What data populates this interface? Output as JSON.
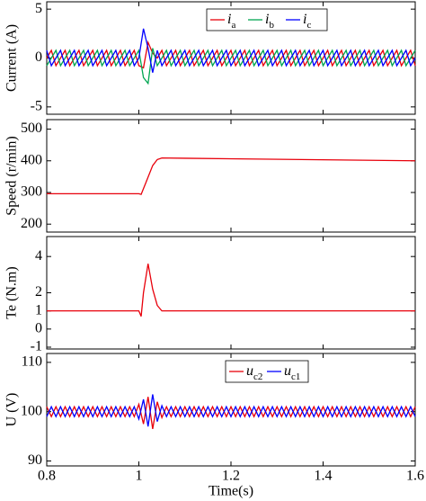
{
  "chart_data": [
    {
      "type": "line",
      "ylabel": "Current (A)",
      "legend": "upper center",
      "xlim": [
        0.8,
        1.6
      ],
      "ylim": [
        -5.75,
        5.75
      ],
      "yticks": [
        -5,
        0,
        5
      ],
      "x": [
        0.8,
        0.81,
        0.82,
        0.83,
        0.84,
        0.85,
        0.86,
        0.87,
        0.88,
        0.89,
        0.9,
        0.91,
        0.92,
        0.93,
        0.94,
        0.95,
        0.96,
        0.97,
        0.98,
        0.99,
        1.0,
        1.01,
        1.02,
        1.03,
        1.04,
        1.05,
        1.06,
        1.07,
        1.08,
        1.09,
        1.1,
        1.11,
        1.12,
        1.13,
        1.14,
        1.15,
        1.16,
        1.17,
        1.18,
        1.19,
        1.2,
        1.21,
        1.22,
        1.23,
        1.24,
        1.25,
        1.26,
        1.27,
        1.28,
        1.29,
        1.3,
        1.31,
        1.32,
        1.33,
        1.34,
        1.35,
        1.36,
        1.37,
        1.38,
        1.39,
        1.4,
        1.41,
        1.42,
        1.43,
        1.44,
        1.45,
        1.46,
        1.47,
        1.48,
        1.49,
        1.5,
        1.51,
        1.52,
        1.53,
        1.54,
        1.55,
        1.56,
        1.57,
        1.58,
        1.59,
        1.6
      ],
      "series": [
        {
          "name": "ia",
          "color": "#e8000b",
          "values": [
            0,
            0.78,
            -0.78,
            0,
            0.78,
            -0.78,
            0,
            0.78,
            -0.78,
            0,
            0.78,
            -0.78,
            0,
            0.78,
            -0.78,
            0,
            0.78,
            -0.78,
            0,
            0.78,
            -0.78,
            -1.0,
            1.6,
            0.5,
            0,
            0.78,
            -0.78,
            0,
            0.78,
            -0.78,
            0,
            0.78,
            -0.78,
            0,
            0.78,
            -0.78,
            0,
            0.78,
            -0.78,
            0,
            0.78,
            -0.78,
            0,
            0.78,
            -0.78,
            0,
            0.78,
            -0.78,
            0,
            0.78,
            -0.78,
            0,
            0.78,
            -0.78,
            0,
            0.78,
            -0.78,
            0,
            0.78,
            -0.78,
            0,
            0.78,
            -0.78,
            0,
            0.78,
            -0.78,
            0,
            0.78,
            -0.78,
            0,
            0.78,
            -0.78,
            0,
            0.78,
            -0.78,
            0,
            0.78,
            -0.78,
            0,
            0.78,
            -0.78
          ]
        },
        {
          "name": "ib",
          "color": "#00a651",
          "values": [
            -0.78,
            0,
            0.78,
            -0.78,
            0,
            0.78,
            -0.78,
            0,
            0.78,
            -0.78,
            0,
            0.78,
            -0.78,
            0,
            0.78,
            -0.78,
            0,
            0.78,
            -0.78,
            0,
            0.78,
            -2.0,
            -2.6,
            1.0,
            -0.78,
            0,
            0.78,
            -0.78,
            0,
            0.78,
            -0.78,
            0,
            0.78,
            -0.78,
            0,
            0.78,
            -0.78,
            0,
            0.78,
            -0.78,
            0,
            0.78,
            -0.78,
            0,
            0.78,
            -0.78,
            0,
            0.78,
            -0.78,
            0,
            0.78,
            -0.78,
            0,
            0.78,
            -0.78,
            0,
            0.78,
            -0.78,
            0,
            0.78,
            -0.78,
            0,
            0.78,
            -0.78,
            0,
            0.78,
            -0.78,
            0,
            0.78,
            -0.78,
            0,
            0.78,
            -0.78,
            0,
            0.78,
            -0.78,
            0,
            0.78,
            -0.78,
            0,
            0.78
          ]
        },
        {
          "name": "ic",
          "color": "#0000ff",
          "values": [
            0.78,
            -0.78,
            0,
            0.78,
            -0.78,
            0,
            0.78,
            -0.78,
            0,
            0.78,
            -0.78,
            0,
            0.78,
            -0.78,
            0,
            0.78,
            -0.78,
            0,
            0.78,
            -0.78,
            0,
            3.0,
            1.0,
            -1.5,
            0.78,
            -0.78,
            0,
            0.78,
            -0.78,
            0,
            0.78,
            -0.78,
            0,
            0.78,
            -0.78,
            0,
            0.78,
            -0.78,
            0,
            0.78,
            -0.78,
            0,
            0.78,
            -0.78,
            0,
            0.78,
            -0.78,
            0,
            0.78,
            -0.78,
            0,
            0.78,
            -0.78,
            0,
            0.78,
            -0.78,
            0,
            0.78,
            -0.78,
            0,
            0.78,
            -0.78,
            0,
            0.78,
            -0.78,
            0,
            0.78,
            -0.78,
            0,
            0.78,
            -0.78,
            0,
            0.78,
            -0.78,
            0,
            0.78,
            -0.78,
            0,
            0.78,
            -0.78,
            0
          ]
        }
      ]
    },
    {
      "type": "line",
      "ylabel": "Speed (r/min)",
      "xlim": [
        0.8,
        1.6
      ],
      "ylim": [
        175,
        530
      ],
      "yticks": [
        200,
        300,
        400,
        500
      ],
      "x": [
        0.8,
        1.0,
        1.005,
        1.015,
        1.03,
        1.04,
        1.05,
        1.1,
        1.6
      ],
      "color": "#e8000b",
      "values": [
        296,
        296,
        294,
        330,
        385,
        404,
        409,
        408,
        400
      ]
    },
    {
      "type": "line",
      "ylabel": "Te (N.m)",
      "xlim": [
        0.8,
        1.6
      ],
      "ylim": [
        -1.1,
        5.1
      ],
      "yticks": [
        -1,
        0,
        1,
        2,
        4
      ],
      "x": [
        0.8,
        1.0,
        1.005,
        1.01,
        1.02,
        1.03,
        1.04,
        1.05,
        1.6
      ],
      "color": "#e8000b",
      "values": [
        1,
        1,
        0.7,
        2.0,
        3.6,
        2.2,
        1.3,
        1.0,
        1.0
      ]
    },
    {
      "type": "line",
      "ylabel": "U (V)",
      "xlabel": "Time(s)",
      "legend": "upper center",
      "xlim": [
        0.8,
        1.6
      ],
      "xticks": [
        0.8,
        1,
        1.2,
        1.4,
        1.6
      ],
      "ylim": [
        89,
        111.8
      ],
      "yticks": [
        90,
        100,
        110
      ],
      "x": [
        0.8,
        0.81,
        0.82,
        0.83,
        0.84,
        0.85,
        0.86,
        0.87,
        0.88,
        0.89,
        0.9,
        0.91,
        0.92,
        0.93,
        0.94,
        0.95,
        0.96,
        0.97,
        0.98,
        0.99,
        1.0,
        1.01,
        1.02,
        1.03,
        1.04,
        1.05,
        1.06,
        1.07,
        1.08,
        1.09,
        1.1,
        1.11,
        1.12,
        1.13,
        1.14,
        1.15,
        1.16,
        1.17,
        1.18,
        1.19,
        1.2,
        1.21,
        1.22,
        1.23,
        1.24,
        1.25,
        1.26,
        1.27,
        1.28,
        1.29,
        1.3,
        1.31,
        1.32,
        1.33,
        1.34,
        1.35,
        1.36,
        1.37,
        1.38,
        1.39,
        1.4,
        1.41,
        1.42,
        1.43,
        1.44,
        1.45,
        1.46,
        1.47,
        1.48,
        1.49,
        1.5,
        1.51,
        1.52,
        1.53,
        1.54,
        1.55,
        1.56,
        1.57,
        1.58,
        1.59,
        1.6
      ],
      "series": [
        {
          "name": "uc2",
          "color": "#e8000b",
          "values": [
            101,
            99,
            101,
            99,
            101,
            99,
            101,
            99,
            101,
            99,
            101,
            99,
            101,
            99,
            101,
            99,
            101,
            99,
            101,
            99,
            101.5,
            97.5,
            103,
            96.5,
            102,
            98.8,
            101,
            99,
            101,
            99,
            101,
            99,
            101,
            99,
            101,
            99,
            101,
            99,
            101,
            99,
            101,
            99,
            101,
            99,
            101,
            99,
            101,
            99,
            101,
            99,
            101,
            99,
            101,
            99,
            101,
            99,
            101,
            99,
            101,
            99,
            101,
            99,
            101,
            99,
            101,
            99,
            101,
            99,
            101,
            99,
            101,
            99,
            101,
            99,
            101,
            99,
            101,
            99,
            101,
            99,
            101
          ]
        },
        {
          "name": "uc1",
          "color": "#0000ff",
          "values": [
            99,
            101,
            99,
            101,
            99,
            101,
            99,
            101,
            99,
            101,
            99,
            101,
            99,
            101,
            99,
            101,
            99,
            101,
            99,
            101,
            98.5,
            102.5,
            97,
            103.5,
            98,
            101.2,
            99,
            101,
            99,
            101,
            99,
            101,
            99,
            101,
            99,
            101,
            99,
            101,
            99,
            101,
            99,
            101,
            99,
            101,
            99,
            101,
            99,
            101,
            99,
            101,
            99,
            101,
            99,
            101,
            99,
            101,
            99,
            101,
            99,
            101,
            99,
            101,
            99,
            101,
            99,
            101,
            99,
            101,
            99,
            101,
            99,
            101,
            99,
            101,
            99,
            101,
            99,
            101,
            99,
            101,
            99
          ]
        }
      ]
    }
  ]
}
